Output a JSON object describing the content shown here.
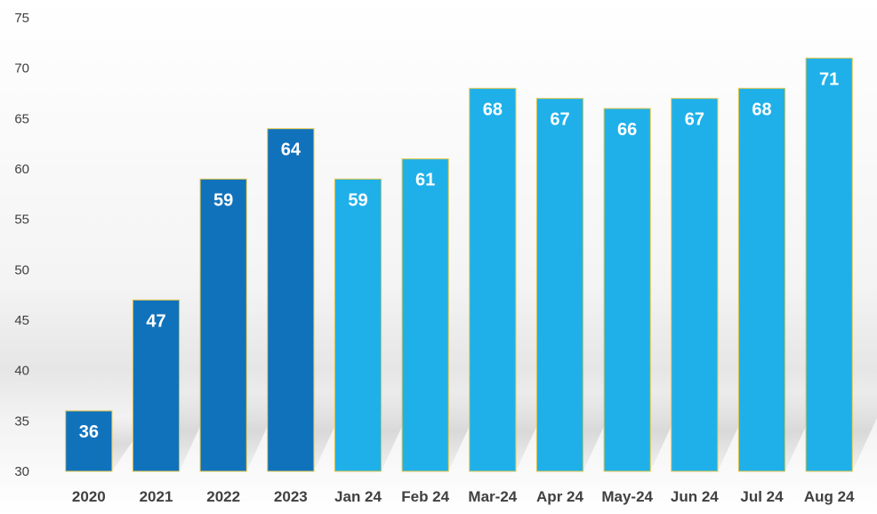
{
  "chart_data": {
    "type": "bar",
    "title": "",
    "xlabel": "",
    "ylabel": "",
    "categories": [
      "2020",
      "2021",
      "2022",
      "2023",
      "Jan 24",
      "Feb 24",
      "Mar-24",
      "Apr 24",
      "May-24",
      "Jun 24",
      "Jul 24",
      "Aug 24"
    ],
    "values": [
      36,
      47,
      59,
      64,
      59,
      61,
      68,
      67,
      66,
      67,
      68,
      71
    ],
    "ylim": [
      30,
      75
    ],
    "yticks": [
      30,
      35,
      40,
      45,
      50,
      55,
      60,
      65,
      70,
      75
    ],
    "grid": false,
    "legend": "none",
    "data_labels": true,
    "colors": {
      "annual": "#1172bc",
      "monthly": "#1fb0ea",
      "bar_outline": "#e8c84a",
      "data_label": "#ffffff",
      "axis_text": "#404040"
    },
    "bar_color_groups": [
      "annual",
      "annual",
      "annual",
      "annual",
      "monthly",
      "monthly",
      "monthly",
      "monthly",
      "monthly",
      "monthly",
      "monthly",
      "monthly"
    ]
  }
}
